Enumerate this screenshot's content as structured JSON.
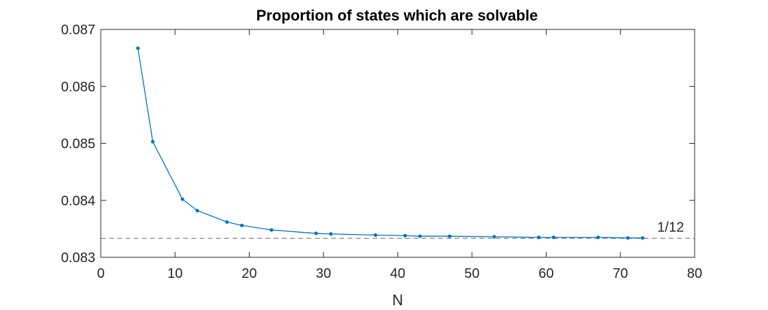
{
  "chart_data": {
    "type": "line",
    "title": "Proportion of states which are solvable",
    "xlabel": "N",
    "ylabel": "",
    "xlim": [
      0,
      80
    ],
    "ylim": [
      0.083,
      0.087
    ],
    "x_ticks": [
      0,
      10,
      20,
      30,
      40,
      50,
      60,
      70,
      80
    ],
    "x_tick_labels": [
      "0",
      "10",
      "20",
      "30",
      "40",
      "50",
      "60",
      "70",
      "80"
    ],
    "y_ticks": [
      0.083,
      0.084,
      0.085,
      0.086,
      0.087
    ],
    "y_tick_labels": [
      "0.083",
      "0.084",
      "0.085",
      "0.086",
      "0.087"
    ],
    "grid": false,
    "series": [
      {
        "color": "#0072BD",
        "x": [
          5,
          7,
          11,
          13,
          17,
          19,
          23,
          29,
          31,
          37,
          41,
          43,
          47,
          53,
          59,
          61,
          67,
          71,
          73
        ],
        "y": [
          0.08667,
          0.08503,
          0.08402,
          0.08382,
          0.08362,
          0.08356,
          0.08348,
          0.08342,
          0.08341,
          0.08339,
          0.08338,
          0.08337,
          0.08337,
          0.08336,
          0.08335,
          0.08335,
          0.08335,
          0.08334,
          0.08334
        ]
      }
    ],
    "reference_line": {
      "y": 0.083333,
      "label": "1/12",
      "style": "dashed",
      "color": "#666666"
    }
  }
}
